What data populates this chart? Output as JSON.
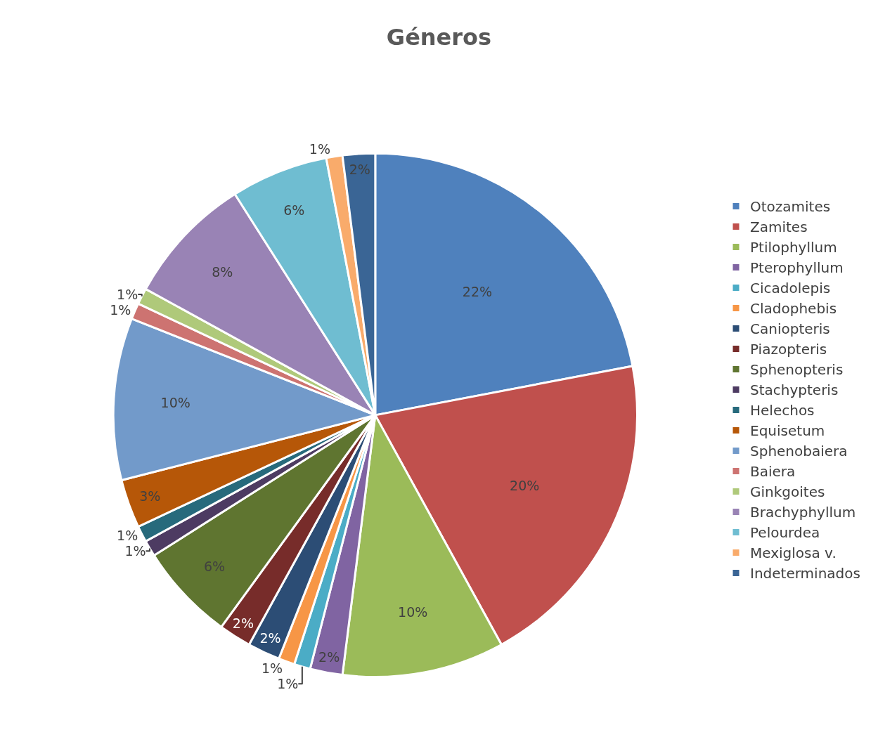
{
  "chart_data": {
    "type": "pie",
    "title": "Géneros",
    "categories": [
      "Otozamites",
      "Zamites",
      "Ptilophyllum",
      "Pterophyllum",
      "Cicadolepis",
      "Cladophebis",
      "Caniopteris",
      "Piazopteris",
      "Sphenopteris",
      "Stachypteris",
      "Helechos",
      "Equisetum",
      "Sphenobaiera",
      "Baiera",
      "Ginkgoites",
      "Brachyphyllum",
      "Pelourdea",
      "Mexiglosa v.",
      "Indeterminados"
    ],
    "values": [
      22,
      20,
      10,
      2,
      1,
      1,
      2,
      2,
      6,
      1,
      1,
      3,
      10,
      1,
      1,
      8,
      6,
      1,
      2
    ],
    "value_labels": [
      "22%",
      "20%",
      "10%",
      "2%",
      "1%",
      "1%",
      "2%",
      "2%",
      "6%",
      "1%",
      "1%",
      "3%",
      "10%",
      "1%",
      "1%",
      "8%",
      "6%",
      "1%",
      "2%"
    ],
    "colors": [
      "#4f81bd",
      "#c0504d",
      "#9bbb59",
      "#8064a2",
      "#4bacc6",
      "#f79646",
      "#2c4d75",
      "#772c2a",
      "#5f7530",
      "#4d3b62",
      "#276a7c",
      "#b65708",
      "#729aca",
      "#cd7371",
      "#afc97a",
      "#9983b5",
      "#6fbdd1",
      "#f9ab6b",
      "#3a6595"
    ],
    "legend": "right"
  }
}
